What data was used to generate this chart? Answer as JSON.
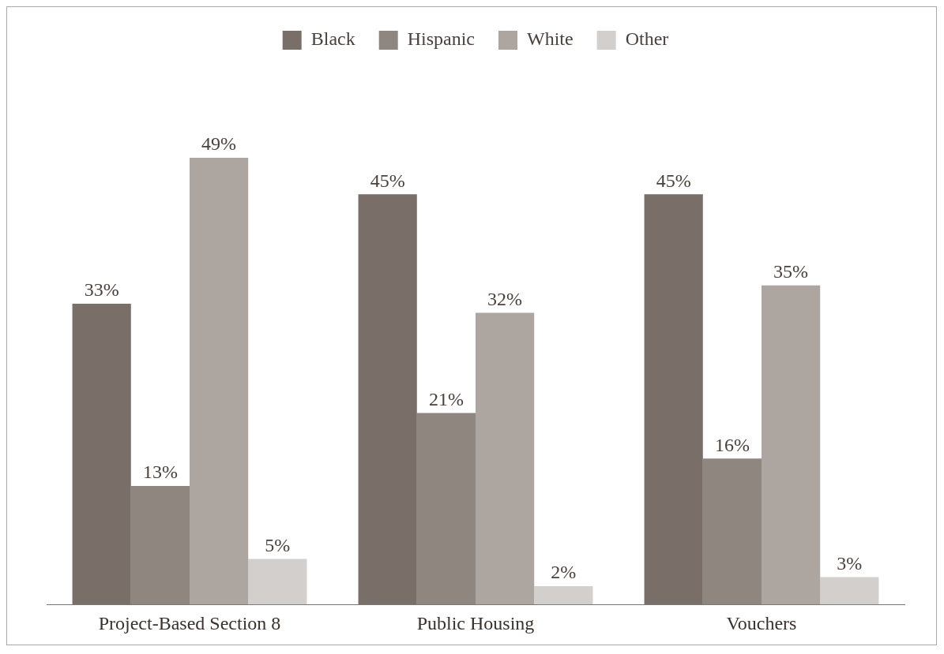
{
  "chart_data": {
    "type": "bar",
    "categories": [
      "Project-Based Section 8",
      "Public Housing",
      "Vouchers"
    ],
    "series": [
      {
        "name": "Black",
        "color": "#7a6e68",
        "values": [
          33,
          45,
          45
        ],
        "value_labels": [
          "33%",
          "45%",
          "45%"
        ]
      },
      {
        "name": "Hispanic",
        "color": "#8f8680",
        "values": [
          13,
          21,
          16
        ],
        "value_labels": [
          "13%",
          "21%",
          "16%"
        ]
      },
      {
        "name": "White",
        "color": "#ada59f",
        "values": [
          49,
          32,
          35
        ],
        "value_labels": [
          "49%",
          "32%",
          "35%"
        ]
      },
      {
        "name": "Other",
        "color": "#d3cfcc",
        "values": [
          5,
          2,
          3
        ],
        "value_labels": [
          "5%",
          "2%",
          "3%"
        ]
      }
    ],
    "legend": "top",
    "grid": false
  }
}
